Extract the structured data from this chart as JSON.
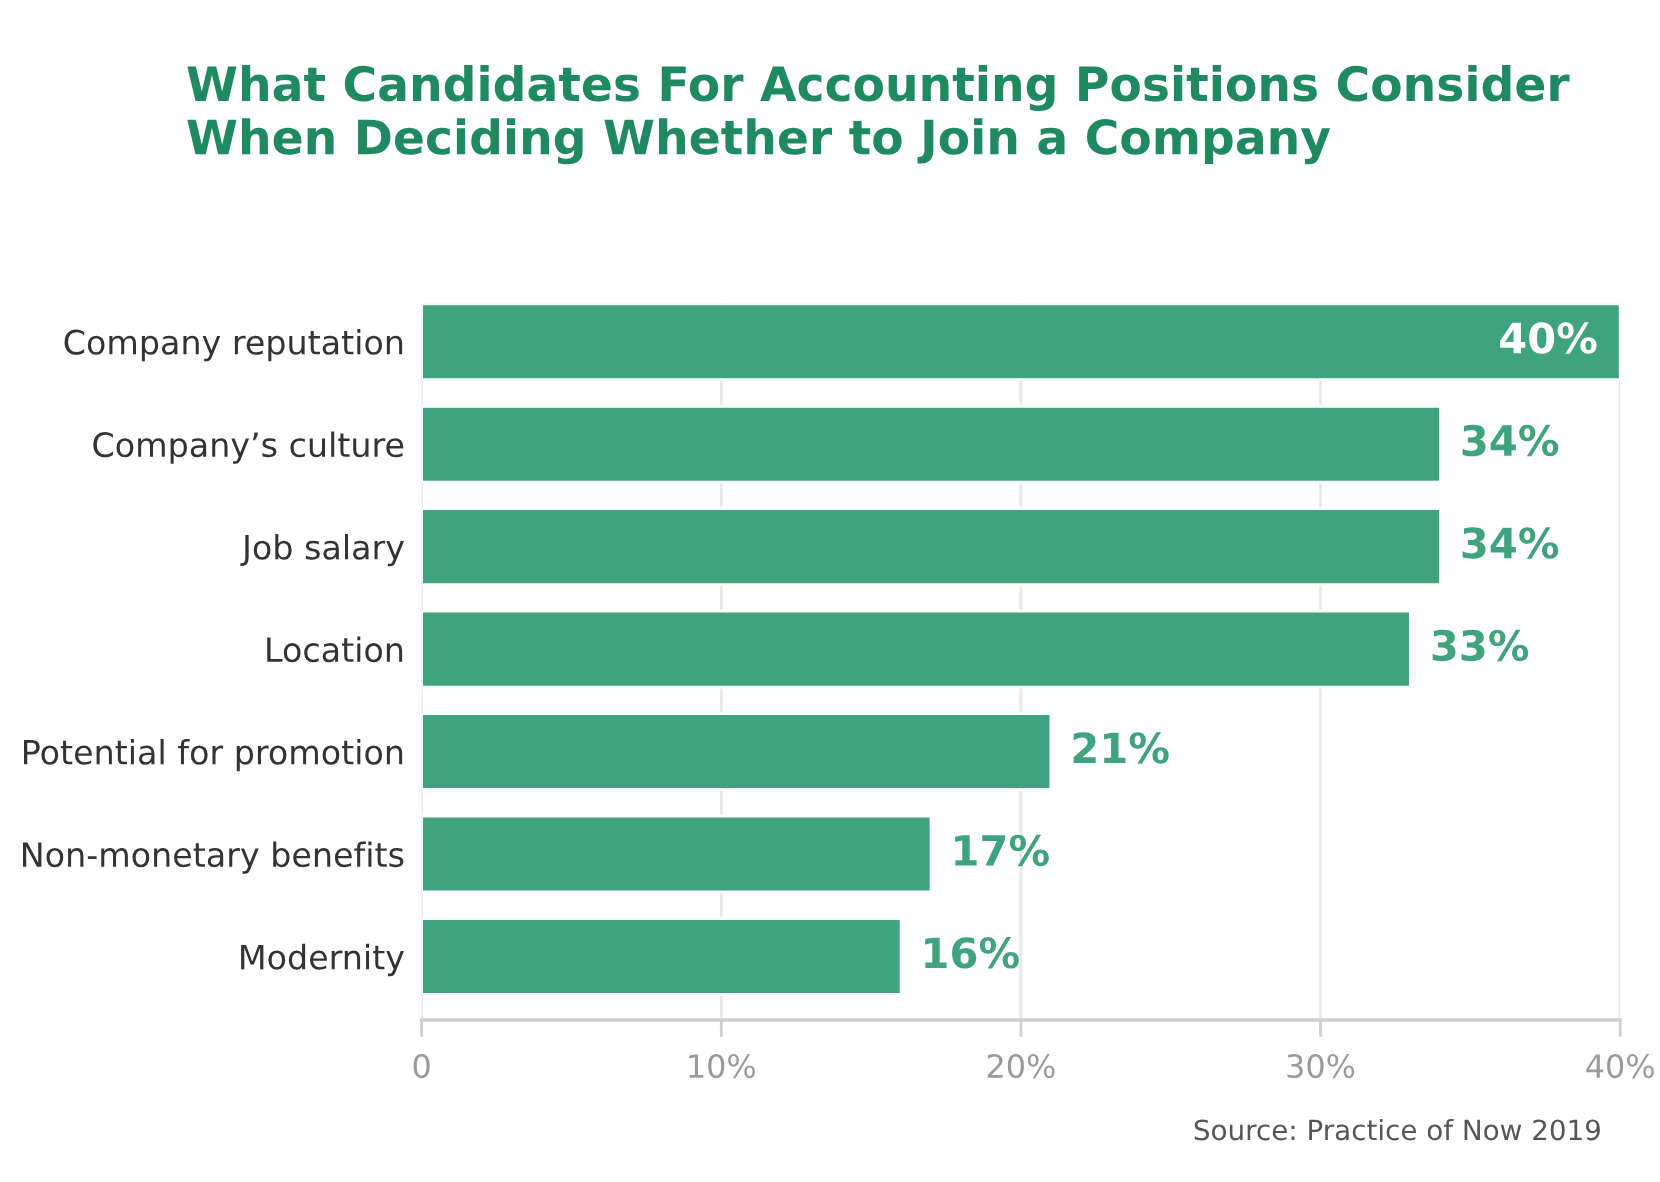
{
  "chart_data": {
    "type": "bar",
    "orientation": "horizontal",
    "title": "What Candidates For Accounting Positions Consider When Deciding Whether to Join a Company",
    "categories": [
      "Company reputation",
      "Company’s culture",
      "Job salary",
      "Location",
      "Potential for promotion",
      "Non-monetary benefits",
      "Modernity"
    ],
    "values": [
      40,
      34,
      34,
      33,
      21,
      17,
      16
    ],
    "color": "#3fa47e",
    "value_labels": [
      "40%",
      "34%",
      "34%",
      "33%",
      "21%",
      "17%",
      "16%"
    ],
    "xlim": [
      0,
      40
    ],
    "xticks": [
      0,
      {
        "value": 10,
        "label": "10%"
      },
      {
        "value": 20,
        "label": "20%"
      },
      {
        "value": 30,
        "label": "30%"
      },
      {
        "value": 40,
        "label": "40%"
      }
    ],
    "grid": "x",
    "annotations": [
      "Source: Practice of Now 2019"
    ]
  }
}
